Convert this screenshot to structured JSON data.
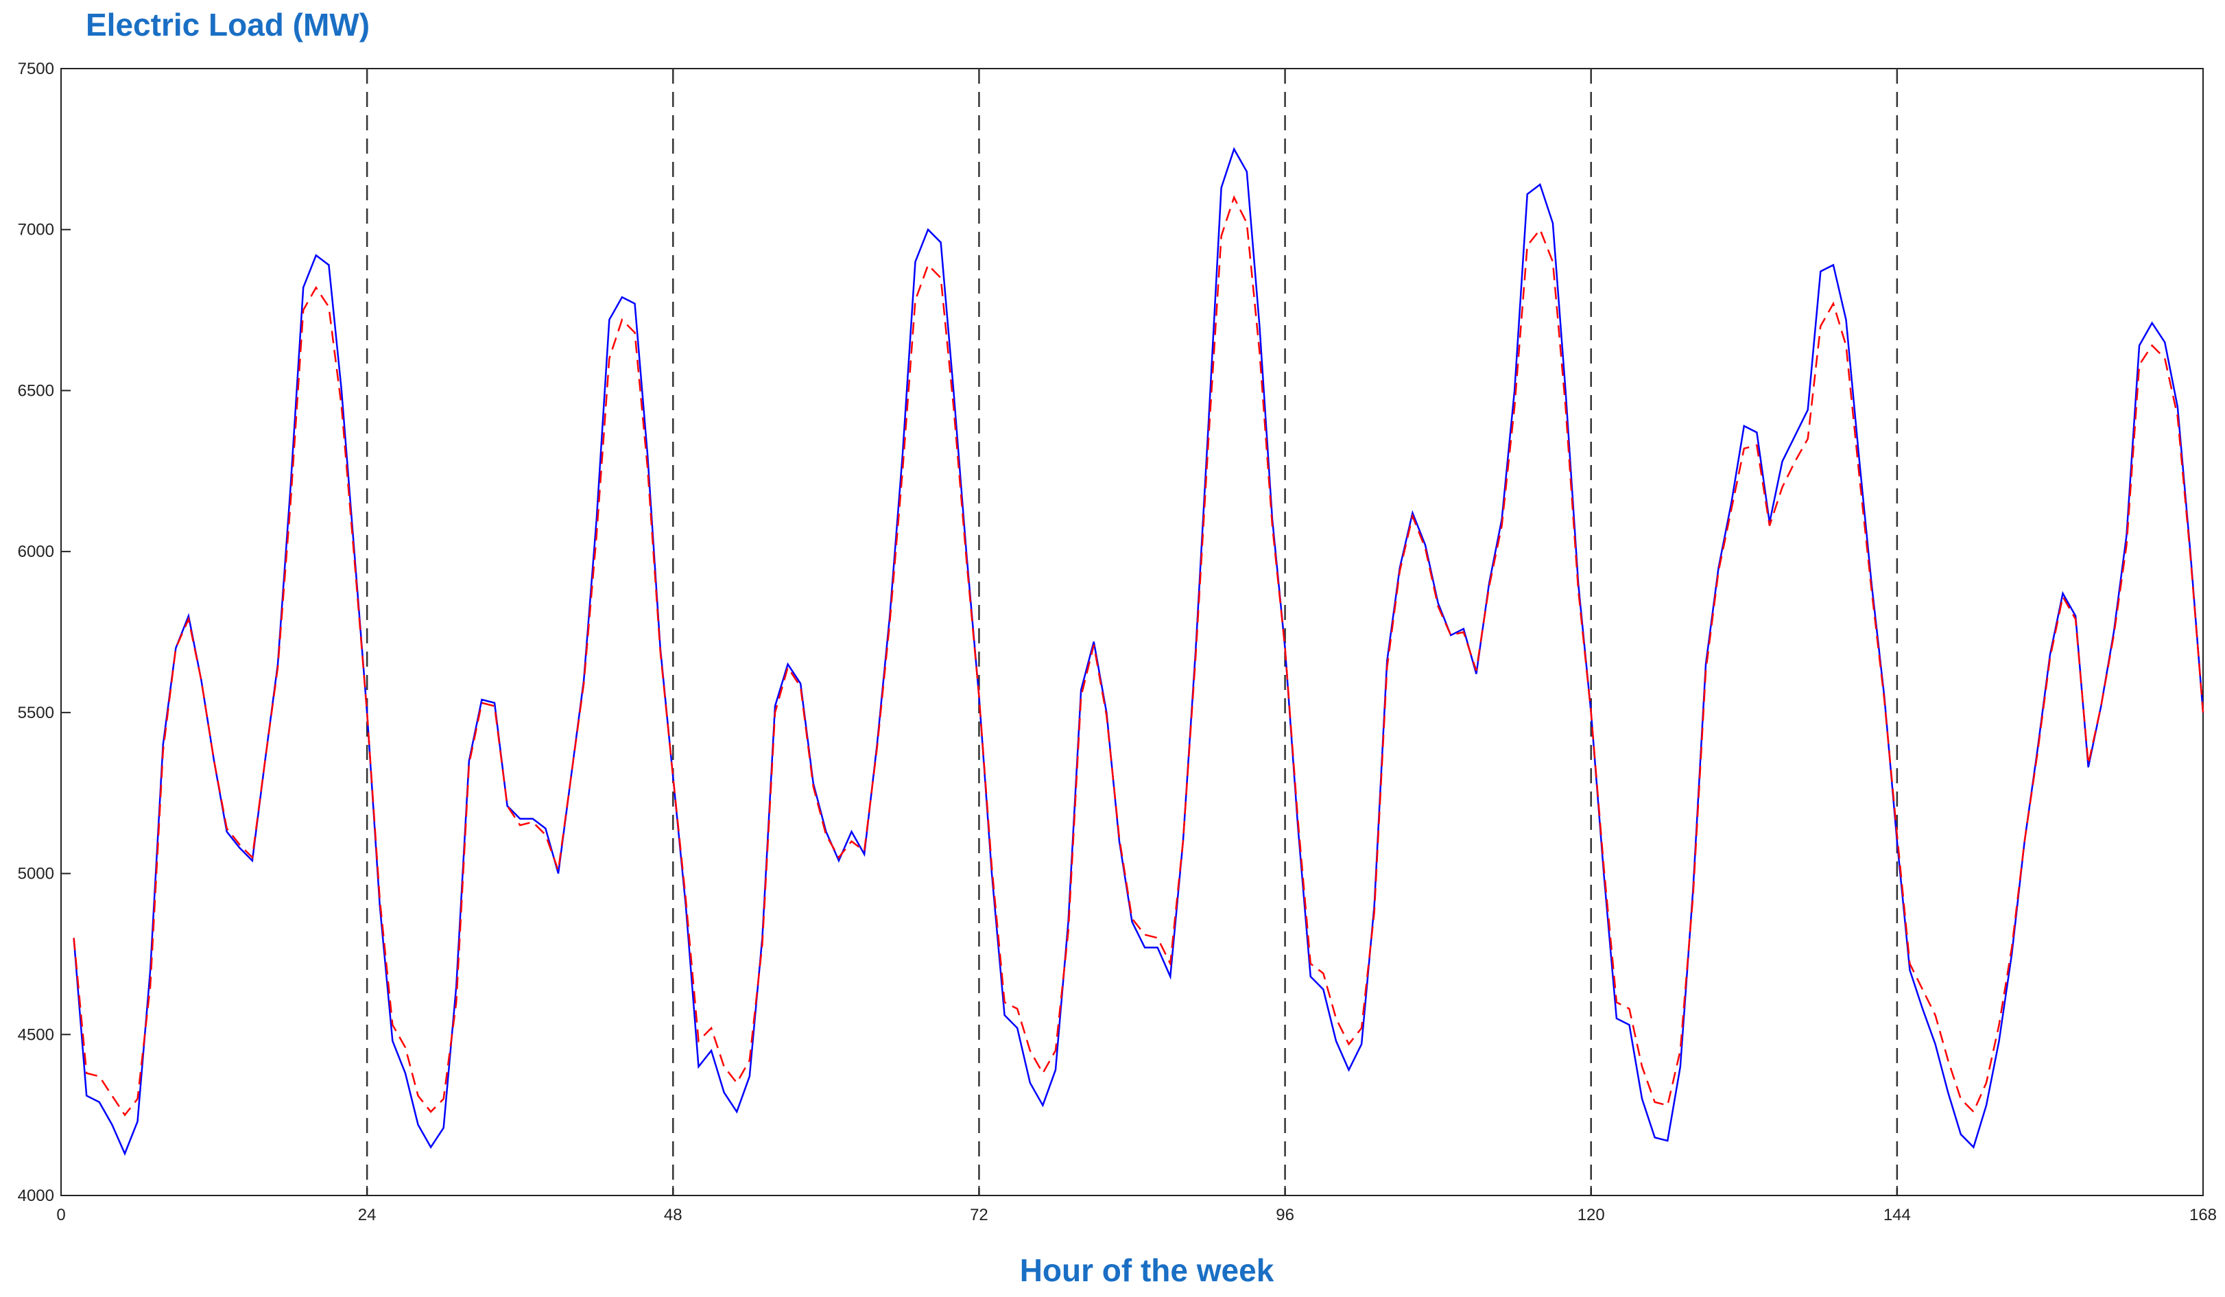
{
  "chart_data": {
    "type": "line",
    "title": "Electric Load (MW)",
    "xlabel": "Hour of the week",
    "x": [
      1,
      2,
      3,
      4,
      5,
      6,
      7,
      8,
      9,
      10,
      11,
      12,
      13,
      14,
      15,
      16,
      17,
      18,
      19,
      20,
      21,
      22,
      23,
      24,
      25,
      26,
      27,
      28,
      29,
      30,
      31,
      32,
      33,
      34,
      35,
      36,
      37,
      38,
      39,
      40,
      41,
      42,
      43,
      44,
      45,
      46,
      47,
      48,
      49,
      50,
      51,
      52,
      53,
      54,
      55,
      56,
      57,
      58,
      59,
      60,
      61,
      62,
      63,
      64,
      65,
      66,
      67,
      68,
      69,
      70,
      71,
      72,
      73,
      74,
      75,
      76,
      77,
      78,
      79,
      80,
      81,
      82,
      83,
      84,
      85,
      86,
      87,
      88,
      89,
      90,
      91,
      92,
      93,
      94,
      95,
      96,
      97,
      98,
      99,
      100,
      101,
      102,
      103,
      104,
      105,
      106,
      107,
      108,
      109,
      110,
      111,
      112,
      113,
      114,
      115,
      116,
      117,
      118,
      119,
      120,
      121,
      122,
      123,
      124,
      125,
      126,
      127,
      128,
      129,
      130,
      131,
      132,
      133,
      134,
      135,
      136,
      137,
      138,
      139,
      140,
      141,
      142,
      143,
      144,
      145,
      146,
      147,
      148,
      149,
      150,
      151,
      152,
      153,
      154,
      155,
      156,
      157,
      158,
      159,
      160,
      161,
      162,
      163,
      164,
      165,
      166,
      167,
      168
    ],
    "series": [
      {
        "color": "#0000ff",
        "dash": false,
        "values": [
          4800,
          4310,
          4290,
          4220,
          4130,
          4230,
          4700,
          5400,
          5700,
          5800,
          5600,
          5350,
          5130,
          5080,
          5040,
          5350,
          5650,
          6200,
          6820,
          6920,
          6890,
          6500,
          6000,
          5500,
          4900,
          4480,
          4380,
          4220,
          4150,
          4210,
          4650,
          5350,
          5540,
          5530,
          5210,
          5170,
          5170,
          5140,
          5000,
          5300,
          5600,
          6100,
          6720,
          6790,
          6770,
          6300,
          5700,
          5300,
          4900,
          4400,
          4450,
          4320,
          4260,
          4370,
          4800,
          5520,
          5650,
          5590,
          5280,
          5130,
          5040,
          5130,
          5060,
          5400,
          5800,
          6300,
          6900,
          7000,
          6960,
          6500,
          6000,
          5550,
          5000,
          4560,
          4520,
          4350,
          4280,
          4390,
          4850,
          5570,
          5720,
          5500,
          5100,
          4850,
          4770,
          4770,
          4680,
          5100,
          5700,
          6400,
          7130,
          7250,
          7180,
          6700,
          6100,
          5700,
          5150,
          4680,
          4640,
          4480,
          4390,
          4470,
          4900,
          5660,
          5950,
          6120,
          6020,
          5840,
          5740,
          5760,
          5620,
          5900,
          6100,
          6500,
          7110,
          7140,
          7020,
          6500,
          5900,
          5500,
          5000,
          4550,
          4530,
          4300,
          4180,
          4170,
          4400,
          4950,
          5650,
          5950,
          6150,
          6390,
          6370,
          6090,
          6280,
          6360,
          6440,
          6870,
          6890,
          6720,
          6300,
          5900,
          5550,
          5100,
          4700,
          4580,
          4470,
          4320,
          4190,
          4150,
          4280,
          4480,
          4750,
          5100,
          5380,
          5680,
          5870,
          5800,
          5330,
          5520,
          5750,
          6050,
          6640,
          6710,
          6650,
          6450,
          6000,
          5500
        ]
      },
      {
        "color": "#ff0000",
        "dash": true,
        "values": [
          4800,
          4380,
          4370,
          4310,
          4250,
          4300,
          4650,
          5380,
          5700,
          5790,
          5600,
          5350,
          5140,
          5090,
          5050,
          5350,
          5640,
          6150,
          6750,
          6820,
          6760,
          6450,
          5980,
          5500,
          4920,
          4530,
          4460,
          4310,
          4260,
          4300,
          4600,
          5340,
          5530,
          5520,
          5210,
          5150,
          5160,
          5120,
          5010,
          5300,
          5590,
          6050,
          6600,
          6720,
          6680,
          6260,
          5690,
          5300,
          4920,
          4480,
          4520,
          4400,
          4350,
          4420,
          4780,
          5500,
          5640,
          5580,
          5270,
          5120,
          5050,
          5100,
          5070,
          5390,
          5780,
          6250,
          6780,
          6890,
          6850,
          6450,
          5980,
          5550,
          5020,
          4600,
          4580,
          4450,
          4380,
          4450,
          4820,
          5550,
          5710,
          5490,
          5110,
          4860,
          4810,
          4800,
          4720,
          5100,
          5680,
          6350,
          6980,
          7100,
          7020,
          6620,
          6080,
          5700,
          5170,
          4720,
          4690,
          4550,
          4470,
          4520,
          4880,
          5640,
          5940,
          6110,
          6010,
          5830,
          5740,
          5750,
          5630,
          5890,
          6080,
          6450,
          6950,
          7000,
          6900,
          6450,
          5880,
          5500,
          5020,
          4600,
          4580,
          4400,
          4290,
          4280,
          4450,
          4930,
          5630,
          5940,
          6130,
          6320,
          6330,
          6080,
          6200,
          6280,
          6350,
          6700,
          6770,
          6640,
          6250,
          5880,
          5540,
          5120,
          4720,
          4640,
          4560,
          4420,
          4300,
          4260,
          4350,
          4530,
          4770,
          5100,
          5370,
          5670,
          5860,
          5790,
          5340,
          5520,
          5740,
          6020,
          6580,
          6640,
          6600,
          6420,
          5990,
          5500
        ]
      }
    ],
    "xlim": [
      0,
      168
    ],
    "xticks": [
      0,
      24,
      48,
      72,
      96,
      120,
      144,
      168
    ],
    "ylim": [
      4000,
      7500
    ],
    "yticks": [
      4000,
      4500,
      5000,
      5500,
      6000,
      6500,
      7000,
      7500
    ],
    "vlines": [
      24,
      48,
      72,
      96,
      120,
      144
    ]
  }
}
